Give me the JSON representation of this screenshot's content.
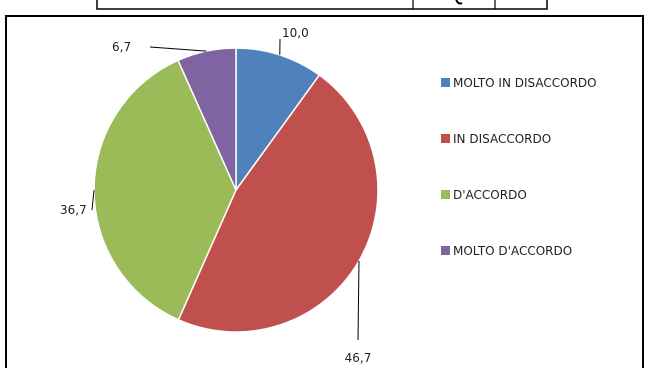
{
  "chart_data": {
    "type": "pie",
    "title": "",
    "slices": [
      {
        "label": "MOLTO IN DISACCORDO",
        "value": 10.0,
        "display": "10,0",
        "color": "#4f81bd"
      },
      {
        "label": "IN DISACCORDO",
        "value": 46.7,
        "display": "46,7",
        "color": "#c0504d"
      },
      {
        "label": "D'ACCORDO",
        "value": 36.7,
        "display": "36,7",
        "color": "#9bbb59"
      },
      {
        "label": "MOLTO D'ACCORDO",
        "value": 6.7,
        "display": "6,7",
        "color": "#8064a2"
      }
    ],
    "legend_position": "right",
    "start_angle": "top",
    "direction": "clockwise"
  }
}
